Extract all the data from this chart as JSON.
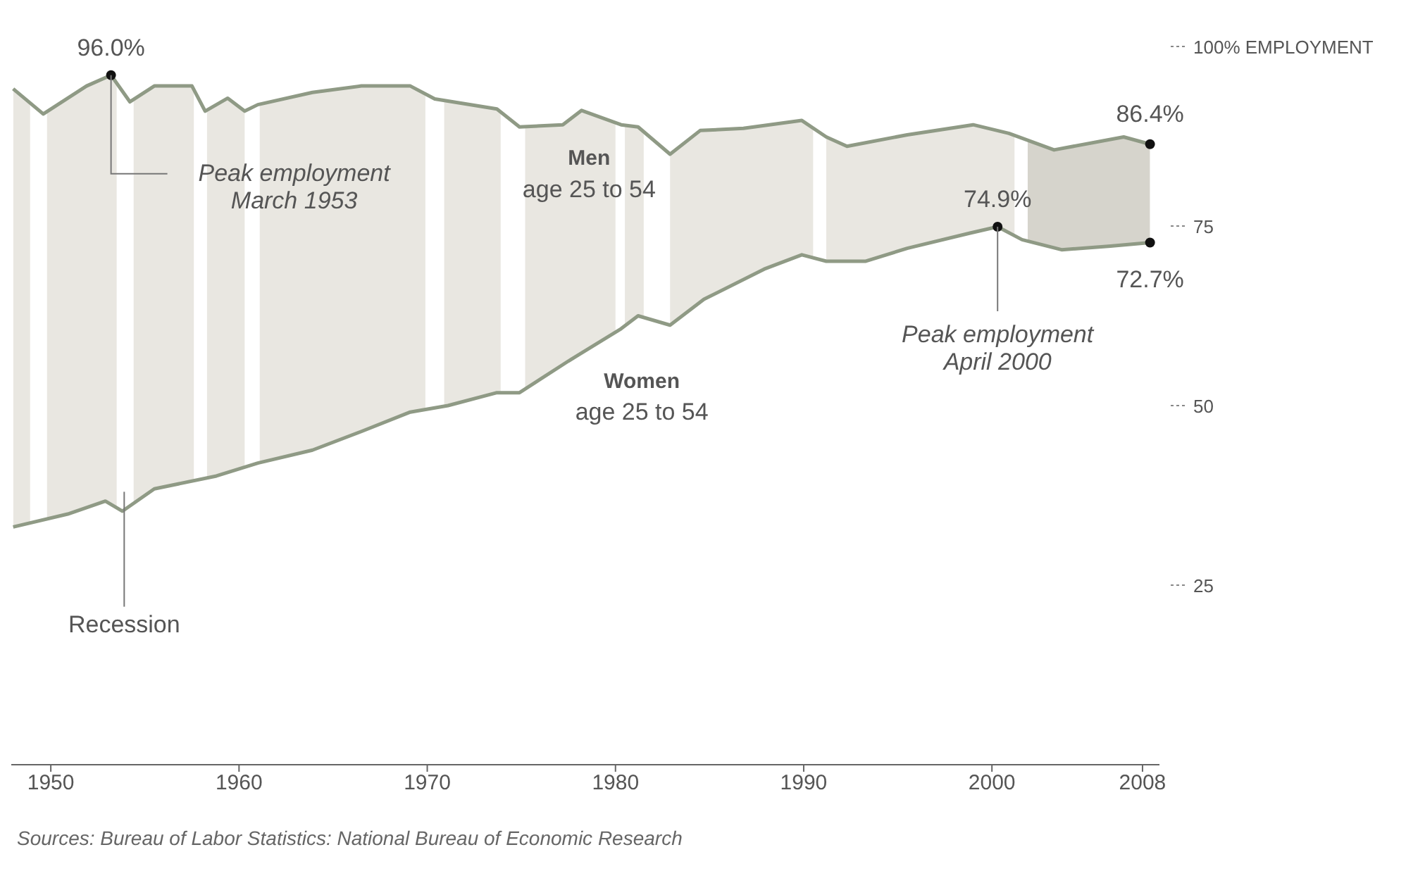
{
  "chart_data": {
    "type": "line",
    "xlim": [
      1947.9,
      2008.9
    ],
    "xticks": [
      1950,
      1960,
      1970,
      1980,
      1990,
      2000,
      2008
    ],
    "ylim": [
      0,
      100
    ],
    "yticks": [
      {
        "value": 25,
        "label": "25"
      },
      {
        "value": 50,
        "label": "50"
      },
      {
        "value": 75,
        "label": "75"
      },
      {
        "value": 100,
        "label": "100% EMPLOYMENT"
      }
    ],
    "grid": false,
    "marker": "none",
    "line_style": "solid",
    "series": [
      {
        "name": "Men",
        "color": "#8f9a85",
        "x": [
          1948,
          1949.6,
          1951.9,
          1953.2,
          1954.2,
          1955.5,
          1957.5,
          1958.2,
          1959.4,
          1960.3,
          1961,
          1963.9,
          1966.5,
          1969.1,
          1970.4,
          1973.7,
          1974.9,
          1977.2,
          1978.2,
          1980.3,
          1981.2,
          1982.9,
          1984.5,
          1986.8,
          1989.9,
          1991.2,
          1992.3,
          1995.5,
          1999,
          2000.9,
          2003.3,
          2007,
          2008.4
        ],
        "values": [
          94.1,
          90.6,
          94.5,
          96.0,
          92.3,
          94.5,
          94.5,
          91.0,
          92.8,
          91.0,
          91.9,
          93.6,
          94.5,
          94.5,
          92.7,
          91.3,
          88.8,
          89.1,
          91.1,
          89.1,
          88.8,
          85.0,
          88.3,
          88.6,
          89.7,
          87.4,
          86.1,
          87.7,
          89.1,
          87.9,
          85.6,
          87.4,
          86.4
        ]
      },
      {
        "name": "Women",
        "color": "#8f9a85",
        "x": [
          1948,
          1950.9,
          1952.9,
          1953.8,
          1955.5,
          1958.8,
          1961,
          1963.9,
          1966.5,
          1969.1,
          1971.1,
          1973.7,
          1974.9,
          1977.5,
          1980.3,
          1981.2,
          1982.9,
          1984.7,
          1987.9,
          1989.9,
          1991.2,
          1993.3,
          1995.5,
          1998.8,
          2000.3,
          2001.6,
          2003.7,
          2006.3,
          2008.4
        ],
        "values": [
          33.1,
          34.9,
          36.7,
          35.3,
          38.4,
          40.2,
          42.0,
          43.8,
          46.4,
          49.1,
          50.0,
          51.8,
          51.8,
          56.2,
          60.7,
          62.5,
          61.2,
          64.8,
          69.0,
          71.0,
          70.1,
          70.1,
          71.9,
          74.0,
          74.9,
          73.1,
          71.7,
          72.2,
          72.7
        ]
      }
    ],
    "bands": [
      {
        "axis": "x",
        "from": 1948.0,
        "to": 1948.9,
        "color": "#e9e7e1"
      },
      {
        "axis": "x",
        "from": 1949.8,
        "to": 1953.5,
        "color": "#e9e7e1"
      },
      {
        "axis": "x",
        "from": 1954.4,
        "to": 1957.6,
        "color": "#e9e7e1"
      },
      {
        "axis": "x",
        "from": 1958.3,
        "to": 1960.3,
        "color": "#e9e7e1"
      },
      {
        "axis": "x",
        "from": 1961.1,
        "to": 1969.9,
        "color": "#e9e7e1"
      },
      {
        "axis": "x",
        "from": 1970.9,
        "to": 1973.9,
        "color": "#e9e7e1"
      },
      {
        "axis": "x",
        "from": 1975.2,
        "to": 1980.0,
        "color": "#e9e7e1"
      },
      {
        "axis": "x",
        "from": 1980.5,
        "to": 1981.5,
        "color": "#e9e7e1"
      },
      {
        "axis": "x",
        "from": 1982.9,
        "to": 1990.5,
        "color": "#e9e7e1"
      },
      {
        "axis": "x",
        "from": 1991.2,
        "to": 2001.2,
        "color": "#e9e7e1"
      },
      {
        "axis": "x",
        "from": 2001.9,
        "to": 2008.4,
        "color": "#d6d4cc"
      }
    ],
    "annotations": [
      {
        "text": "96.0%",
        "x": 1953.2,
        "y": 96.0
      },
      {
        "text": "Peak employment\nMarch 1953",
        "x": 1953.2,
        "y": 96.0
      },
      {
        "text": "86.4%",
        "x": 2008.4,
        "y": 86.4
      },
      {
        "text": "72.7%",
        "x": 2008.4,
        "y": 72.7
      },
      {
        "text": "74.9%",
        "x": 2000.3,
        "y": 74.9
      },
      {
        "text": "Peak employment\nApril 2000",
        "x": 2000.3,
        "y": 74.9
      },
      "age 25 to 54",
      "age 25 to 54",
      {
        "text": "Recession",
        "x": 1953.9
      },
      "Sources: Bureau of Labor Statistics: National Bureau of Economic Research"
    ]
  }
}
